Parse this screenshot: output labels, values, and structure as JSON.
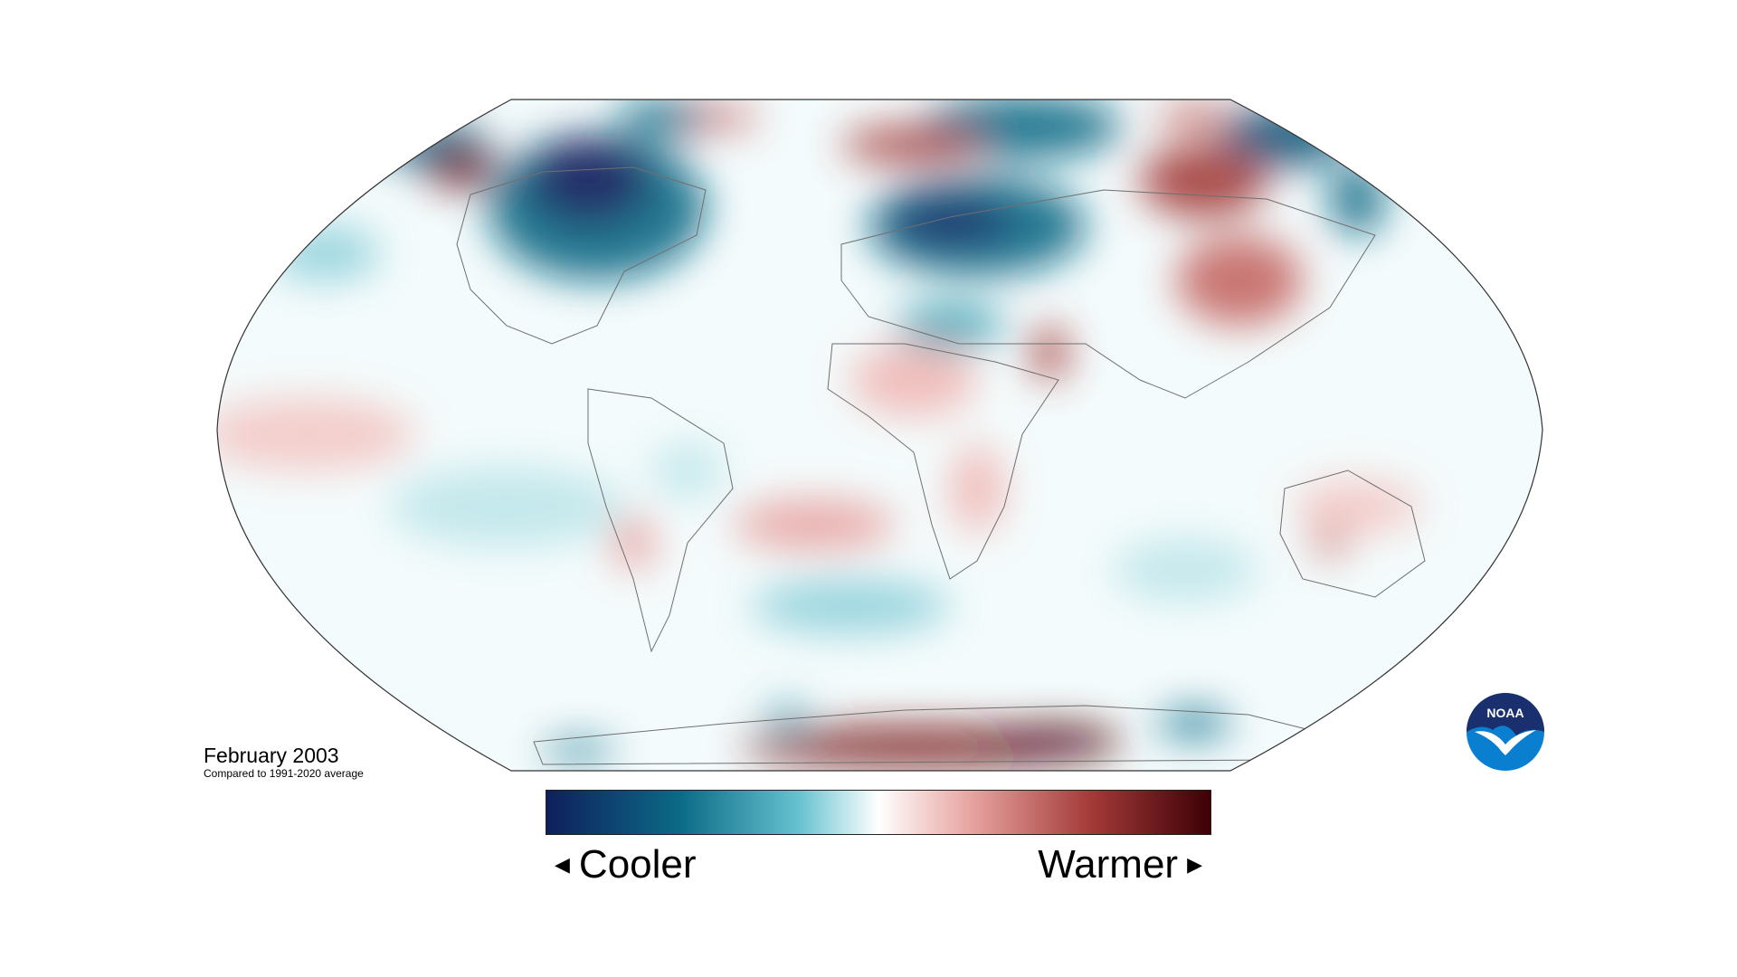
{
  "map": {
    "projection": "Robinson",
    "field": "temperature anomaly",
    "colors": {
      "coolest": "#0f1f5c",
      "cool": "#0b6a86",
      "neutral": "#ffffff",
      "warm": "#c25a57",
      "warmest": "#4a0208",
      "coastline": "#6f6f6f",
      "outline": "#333333"
    }
  },
  "caption": {
    "title": "February 2003",
    "subtitle": "Compared to 1991-2020 average"
  },
  "legend": {
    "low_label": "Cooler",
    "high_label": "Warmer",
    "gradient": [
      "#0f1f5c",
      "#0b6a86",
      "#66c2cf",
      "#ffffff",
      "#e7a3a0",
      "#a33a38",
      "#3d0006"
    ]
  },
  "logo": {
    "text": "NOAA",
    "colors": {
      "top": "#1a2f6e",
      "bottom": "#0a7fd0",
      "bird": "#ffffff"
    }
  }
}
